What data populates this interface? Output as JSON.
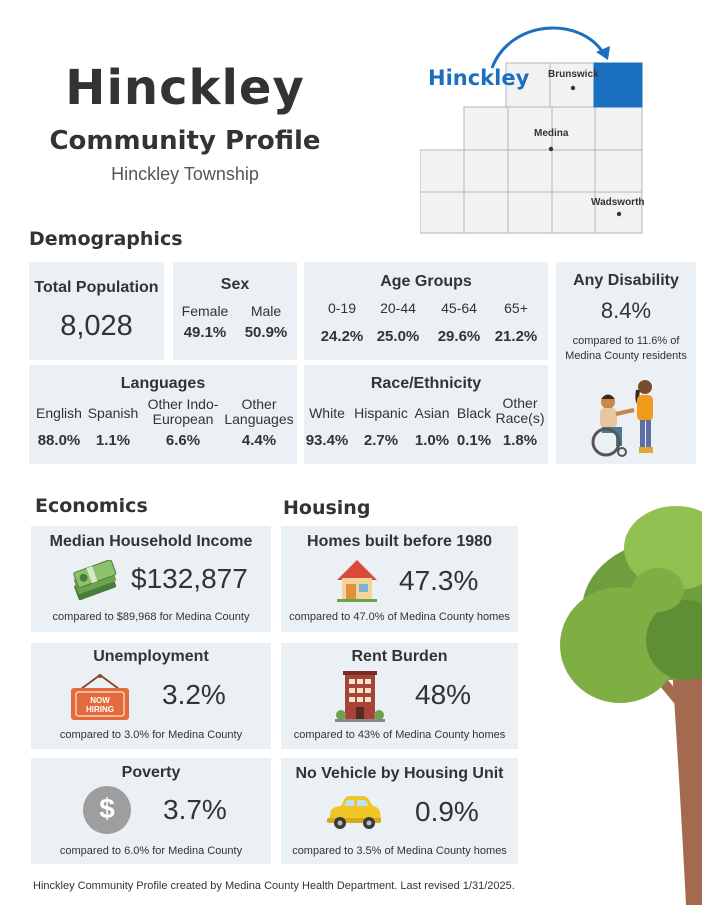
{
  "header": {
    "title": "Hinckley",
    "subtitle": "Community Profile",
    "township": "Hinckley Township"
  },
  "map": {
    "highlight_label": "Hinckley",
    "towns": [
      "Brunswick",
      "Medina",
      "Wadsworth"
    ],
    "highlight_color": "#1b6fbf"
  },
  "sections": {
    "demographics": "Demographics",
    "economics": "Economics",
    "housing": "Housing"
  },
  "total_population": {
    "label": "Total Population",
    "value": "8,028"
  },
  "sex": {
    "title": "Sex",
    "items": [
      {
        "label": "Female",
        "value": "49.1%"
      },
      {
        "label": "Male",
        "value": "50.9%"
      }
    ]
  },
  "age_groups": {
    "title": "Age Groups",
    "items": [
      {
        "label": "0-19",
        "value": "24.2%"
      },
      {
        "label": "20-44",
        "value": "25.0%"
      },
      {
        "label": "45-64",
        "value": "29.6%"
      },
      {
        "label": "65+",
        "value": "21.2%"
      }
    ]
  },
  "disability": {
    "title": "Any Disability",
    "value": "8.4%",
    "compare": "compared to 11.6% of Medina County residents"
  },
  "languages": {
    "title": "Languages",
    "items": [
      {
        "label": "English",
        "value": "88.0%"
      },
      {
        "label": "Spanish",
        "value": "1.1%"
      },
      {
        "label": "Other Indo-European",
        "value": "6.6%"
      },
      {
        "label": "Other Languages",
        "value": "4.4%"
      }
    ]
  },
  "race": {
    "title": "Race/Ethnicity",
    "items": [
      {
        "label": "White",
        "value": "93.4%"
      },
      {
        "label": "Hispanic",
        "value": "2.7%"
      },
      {
        "label": "Asian",
        "value": "1.0%"
      },
      {
        "label": "Black",
        "value": "0.1%"
      },
      {
        "label": "Other Race(s)",
        "value": "1.8%"
      }
    ]
  },
  "economics": {
    "income": {
      "title": "Median Household Income",
      "value": "$132,877",
      "compare": "compared to $89,968 for Medina County"
    },
    "unemployment": {
      "title": "Unemployment",
      "value": "3.2%",
      "compare": "compared to 3.0% for Medina County",
      "sign_text": "NOW HIRING"
    },
    "poverty": {
      "title": "Poverty",
      "value": "3.7%",
      "compare": "compared to 6.0% for Medina County",
      "coin_symbol": "$"
    }
  },
  "housing": {
    "homes_before_1980": {
      "title": "Homes built before 1980",
      "value": "47.3%",
      "compare": "compared to 47.0% of Medina County homes"
    },
    "rent_burden": {
      "title": "Rent Burden",
      "value": "48%",
      "compare": "compared to 43% of Medina County homes"
    },
    "no_vehicle": {
      "title": "No Vehicle by Housing Unit",
      "value": "0.9%",
      "compare": "compared to 3.5% of Medina County homes"
    }
  },
  "footer": "Hinckley Community Profile created by Medina County Health Department. Last revised 1/31/2025."
}
